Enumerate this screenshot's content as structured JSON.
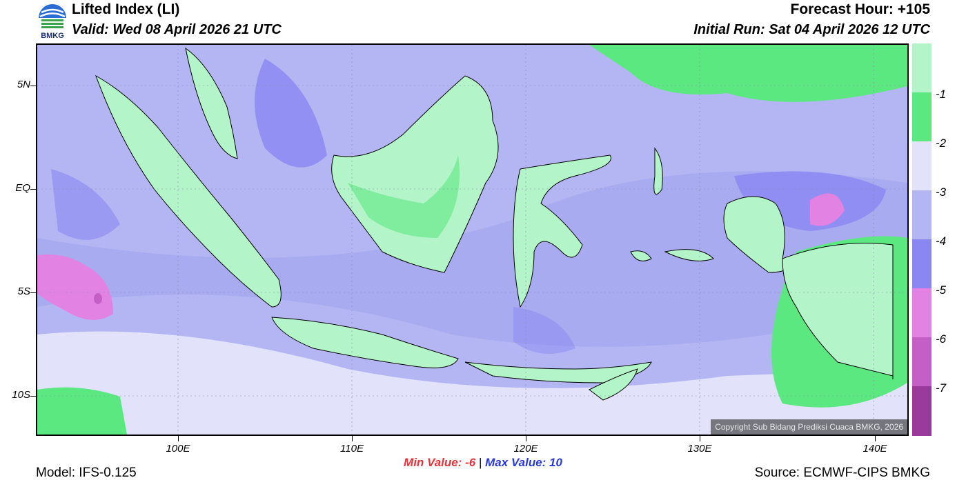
{
  "header": {
    "title": "Lifted Index (LI)",
    "valid": "Valid: Wed 08 April 2026 21 UTC",
    "forecast_hour": "Forecast Hour: +105",
    "initial_run": "Initial Run: Sat 04 April 2026 12 UTC",
    "logo_text": "BMKG"
  },
  "map": {
    "lat_labels": [
      "5N",
      "EQ",
      "5S",
      "10S"
    ],
    "lon_labels": [
      "100E",
      "110E",
      "120E",
      "130E",
      "140E"
    ],
    "copyright": "Copyright Sub Bidang Prediksi Cuaca BMKG, 2026",
    "background_color": "#a9abf0"
  },
  "colorbar": {
    "labels": [
      "-1",
      "-2",
      "-3",
      "-4",
      "-5",
      "-6",
      "-7"
    ],
    "colors": [
      "#b3f5c9",
      "#5ce880",
      "#e2e2fb",
      "#b4b6f4",
      "#8a87f2",
      "#e282e2",
      "#c55fc8",
      "#9b3a9d"
    ]
  },
  "footer": {
    "min_label": "Min Value:  -6",
    "separator": "|",
    "max_label": "Max Value:  10",
    "model": "Model: IFS-0.125",
    "source": "Source: ECMWF-CIPS BMKG"
  }
}
